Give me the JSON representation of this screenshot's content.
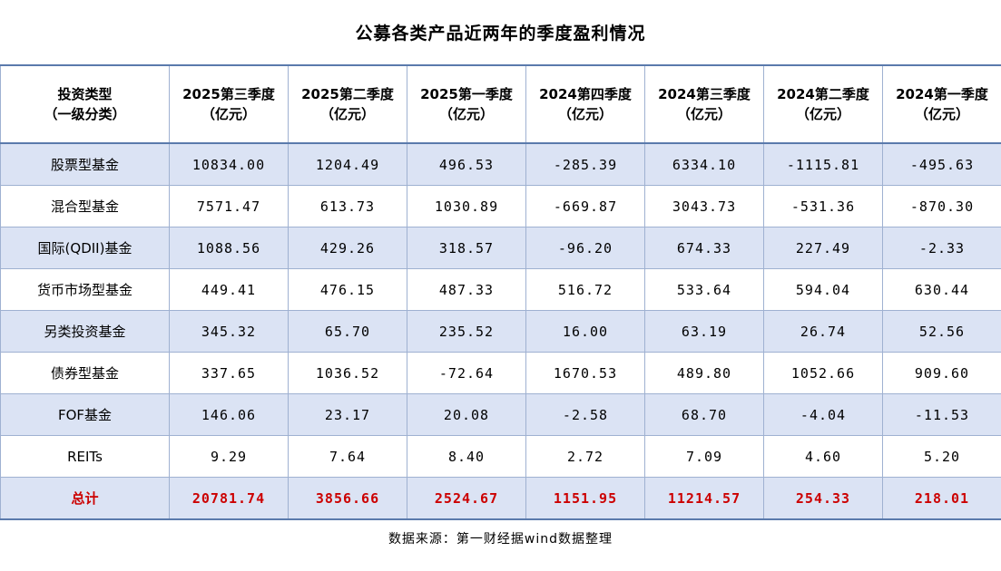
{
  "title": "公募各类产品近两年的季度盈利情况",
  "table": {
    "header": {
      "col0_line1": "投资类型",
      "col0_line2": "（一级分类）",
      "quarters": [
        {
          "line1": "2025第三季度",
          "line2": "（亿元）"
        },
        {
          "line1": "2025第二季度",
          "line2": "（亿元）"
        },
        {
          "line1": "2025第一季度",
          "line2": "（亿元）"
        },
        {
          "line1": "2024第四季度",
          "line2": "（亿元）"
        },
        {
          "line1": "2024第三季度",
          "line2": "（亿元）"
        },
        {
          "line1": "2024第二季度",
          "line2": "（亿元）"
        },
        {
          "line1": "2024第一季度",
          "line2": "（亿元）"
        }
      ]
    },
    "rows": [
      {
        "label": "股票型基金",
        "values": [
          "10834.00",
          "1204.49",
          "496.53",
          "-285.39",
          "6334.10",
          "-1115.81",
          "-495.63"
        ]
      },
      {
        "label": "混合型基金",
        "values": [
          "7571.47",
          "613.73",
          "1030.89",
          "-669.87",
          "3043.73",
          "-531.36",
          "-870.30"
        ]
      },
      {
        "label": "国际(QDII)基金",
        "values": [
          "1088.56",
          "429.26",
          "318.57",
          "-96.20",
          "674.33",
          "227.49",
          "-2.33"
        ]
      },
      {
        "label": "货币市场型基金",
        "values": [
          "449.41",
          "476.15",
          "487.33",
          "516.72",
          "533.64",
          "594.04",
          "630.44"
        ]
      },
      {
        "label": "另类投资基金",
        "values": [
          "345.32",
          "65.70",
          "235.52",
          "16.00",
          "63.19",
          "26.74",
          "52.56"
        ]
      },
      {
        "label": "债券型基金",
        "values": [
          "337.65",
          "1036.52",
          "-72.64",
          "1670.53",
          "489.80",
          "1052.66",
          "909.60"
        ]
      },
      {
        "label": "FOF基金",
        "values": [
          "146.06",
          "23.17",
          "20.08",
          "-2.58",
          "68.70",
          "-4.04",
          "-11.53"
        ]
      },
      {
        "label": "REITs",
        "values": [
          "9.29",
          "7.64",
          "8.40",
          "2.72",
          "7.09",
          "4.60",
          "5.20"
        ]
      }
    ],
    "total": {
      "label": "总计",
      "values": [
        "20781.74",
        "3856.66",
        "2524.67",
        "1151.95",
        "11214.57",
        "254.33",
        "218.01"
      ]
    }
  },
  "footer": {
    "source": "数据来源：第一财经据wind数据整理"
  },
  "colors": {
    "stripe_blue": "#dbe3f4",
    "inner_border": "#9fb1d1",
    "outer_border": "#5a7aac",
    "total_red": "#cc0000",
    "text": "#000000"
  },
  "chart_data": {
    "type": "table",
    "title": "公募各类产品近两年的季度盈利情况",
    "columns": [
      "投资类型（一级分类）",
      "2025第三季度（亿元）",
      "2025第二季度（亿元）",
      "2025第一季度（亿元）",
      "2024第四季度（亿元）",
      "2024第三季度（亿元）",
      "2024第二季度（亿元）",
      "2024第一季度（亿元）"
    ],
    "rows": [
      [
        "股票型基金",
        10834.0,
        1204.49,
        496.53,
        -285.39,
        6334.1,
        -1115.81,
        -495.63
      ],
      [
        "混合型基金",
        7571.47,
        613.73,
        1030.89,
        -669.87,
        3043.73,
        -531.36,
        -870.3
      ],
      [
        "国际(QDII)基金",
        1088.56,
        429.26,
        318.57,
        -96.2,
        674.33,
        227.49,
        -2.33
      ],
      [
        "货币市场型基金",
        449.41,
        476.15,
        487.33,
        516.72,
        533.64,
        594.04,
        630.44
      ],
      [
        "另类投资基金",
        345.32,
        65.7,
        235.52,
        16.0,
        63.19,
        26.74,
        52.56
      ],
      [
        "债券型基金",
        337.65,
        1036.52,
        -72.64,
        1670.53,
        489.8,
        1052.66,
        909.6
      ],
      [
        "FOF基金",
        146.06,
        23.17,
        20.08,
        -2.58,
        68.7,
        -4.04,
        -11.53
      ],
      [
        "REITs",
        9.29,
        7.64,
        8.4,
        2.72,
        7.09,
        4.6,
        5.2
      ],
      [
        "总计",
        20781.74,
        3856.66,
        2524.67,
        1151.95,
        11214.57,
        254.33,
        218.01
      ]
    ],
    "source": "数据来源：第一财经据wind数据整理"
  }
}
